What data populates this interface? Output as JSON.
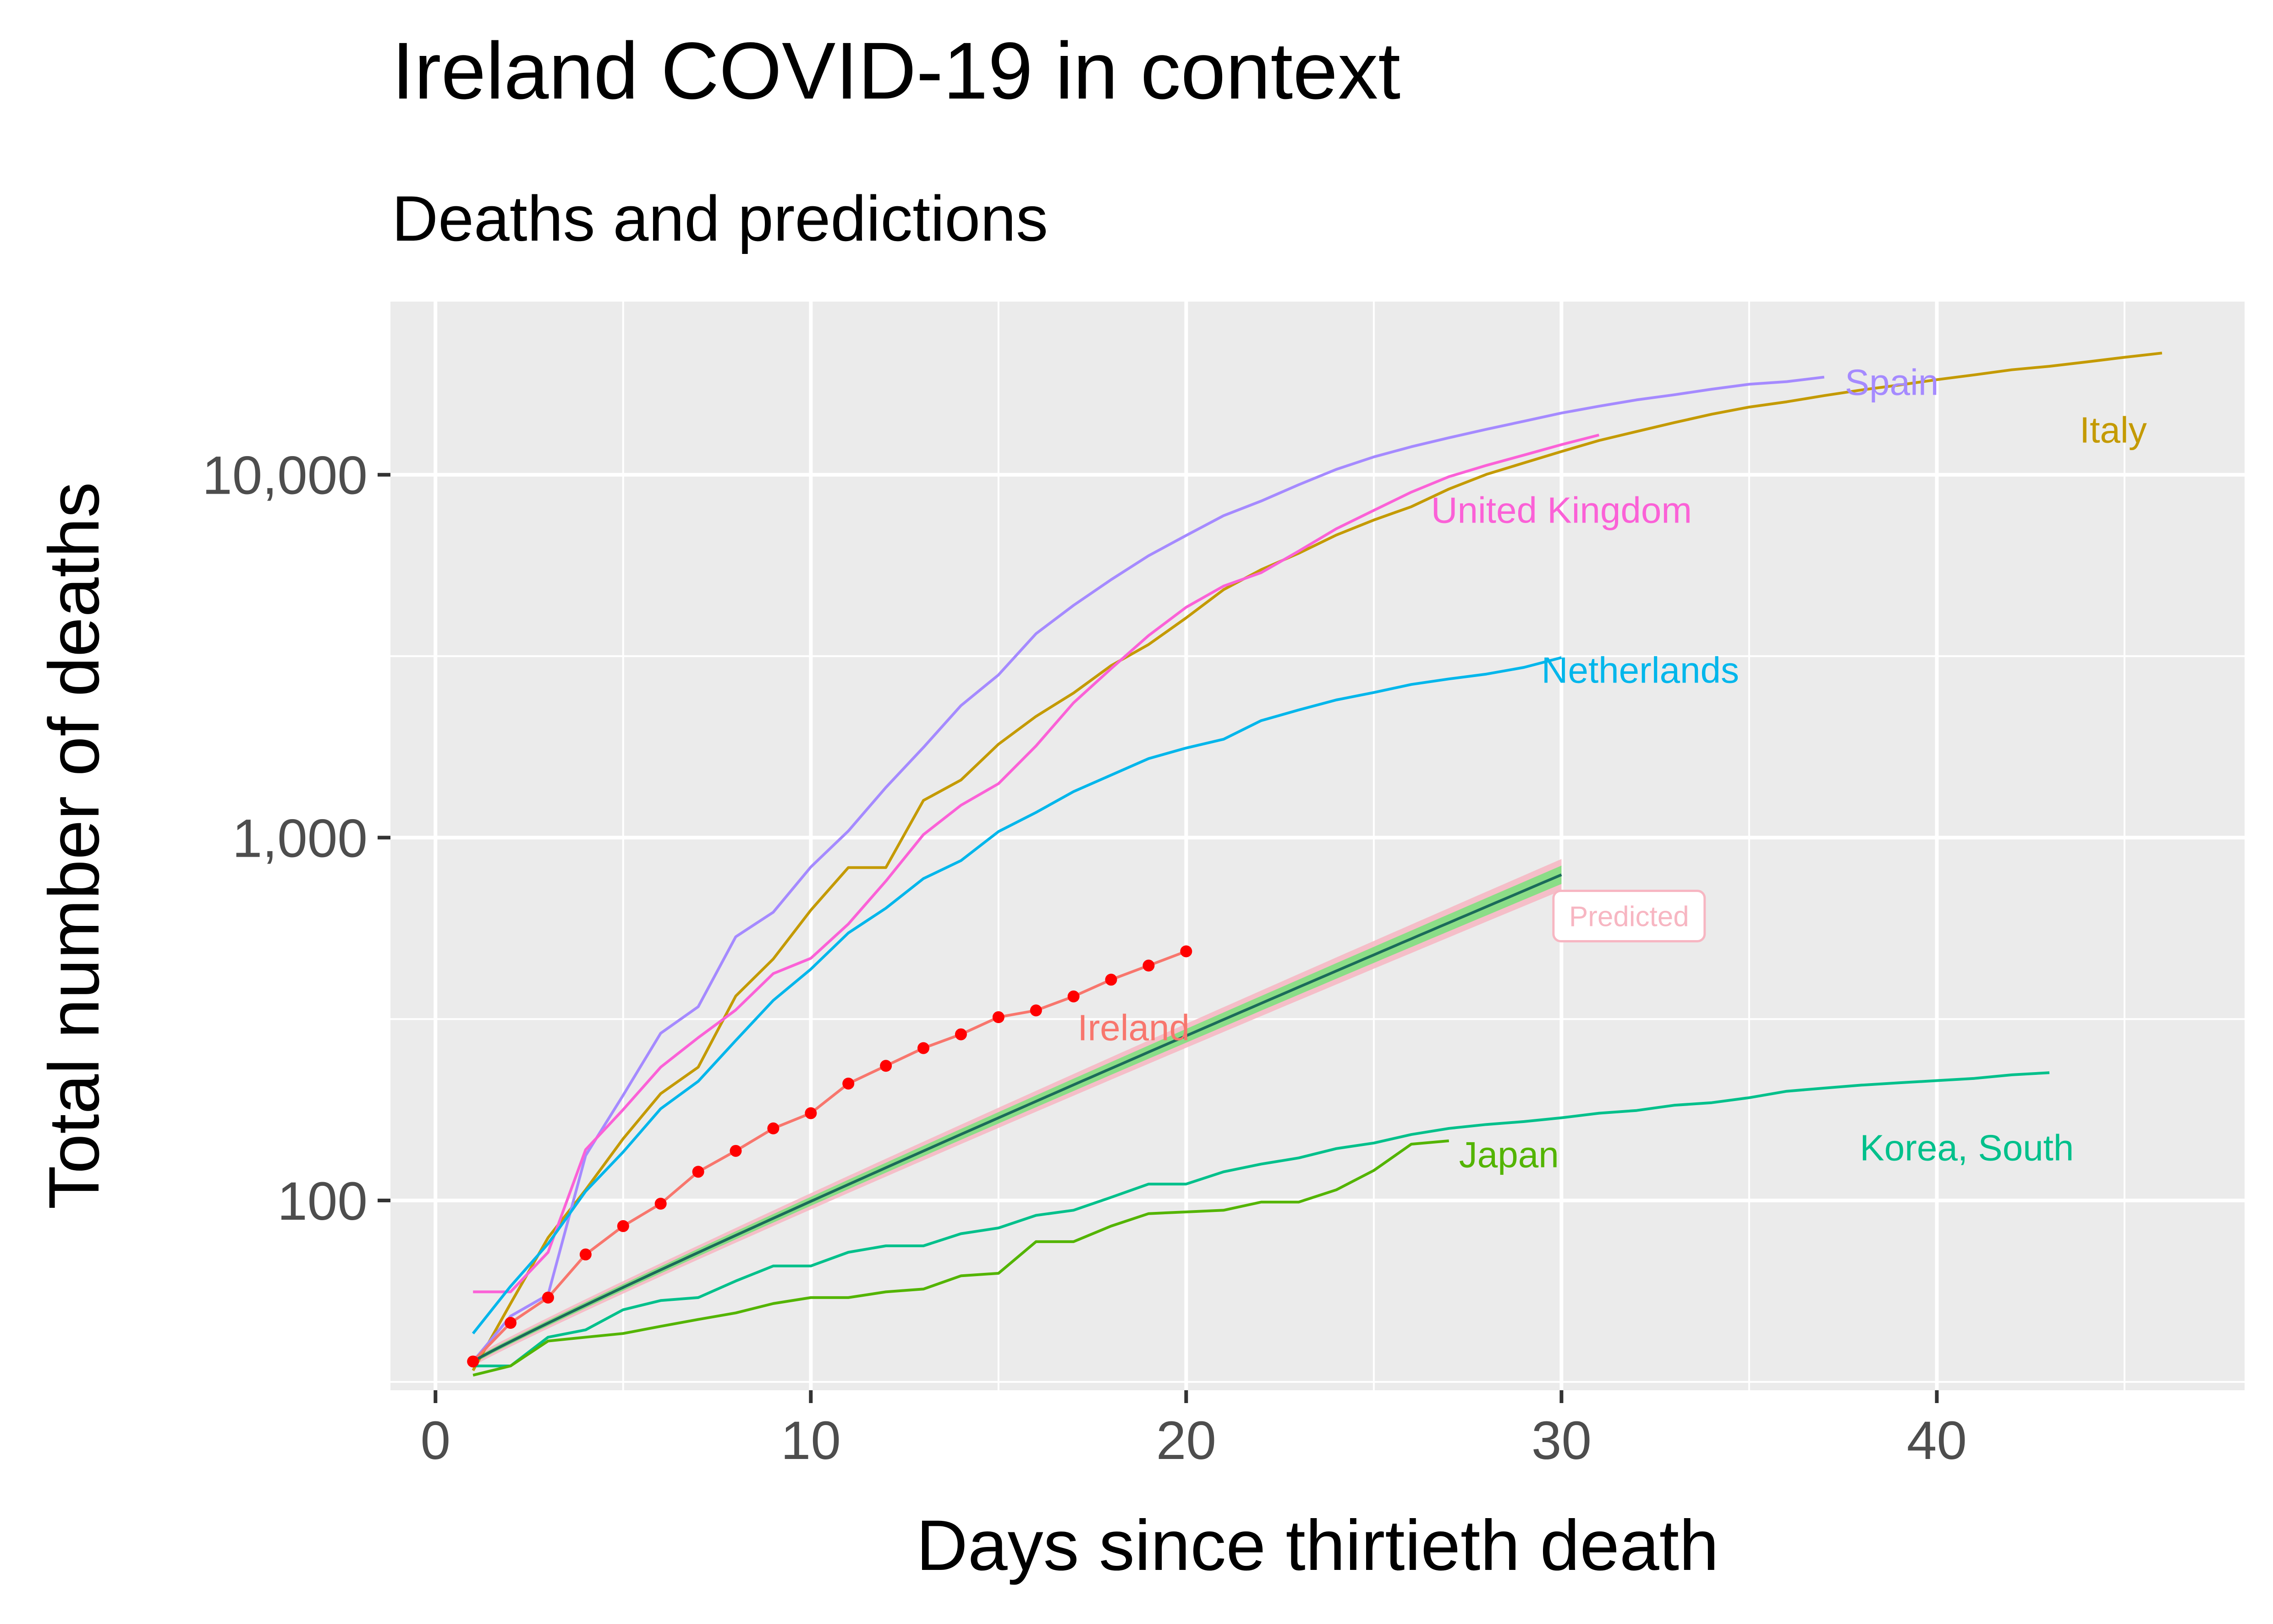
{
  "chart_data": {
    "type": "line",
    "title": "Ireland COVID-19 in context",
    "subtitle": "Deaths and predictions",
    "xlabel": "Days since thirtieth death",
    "ylabel": "Total number of deaths",
    "xlim": [
      -1.2,
      48.2
    ],
    "ylim": [
      30,
      30000
    ],
    "y_scale": "log10",
    "x_ticks": [
      0,
      10,
      20,
      30,
      40
    ],
    "x_tick_labels": [
      "0",
      "10",
      "20",
      "30",
      "40"
    ],
    "y_ticks": [
      100,
      1000,
      10000
    ],
    "y_tick_labels": [
      "100",
      "1,000",
      "10,000"
    ],
    "grid": true,
    "legend": "none",
    "colors": {
      "panel": "#ebebeb",
      "grid": "#ffffff",
      "Italy": "#c49a00",
      "Korea, South": "#00c08b",
      "Japan": "#53b400",
      "Netherlands": "#00b6eb",
      "Spain": "#a58aff",
      "United Kingdom": "#fb61d7",
      "Ireland": "#f8766d",
      "ireland_points": "#ff0000",
      "prediction_line": "#1b6b5a",
      "prediction_band_green": "#7fe07f",
      "prediction_band_pink": "#f7b6c2",
      "predicted_label": "#f7b6c2"
    },
    "series": [
      {
        "name": "Italy",
        "x": [
          1,
          2,
          3,
          4,
          5,
          6,
          7,
          8,
          9,
          10,
          11,
          12,
          13,
          14,
          15,
          16,
          17,
          18,
          19,
          20,
          21,
          22,
          23,
          24,
          25,
          26,
          27,
          28,
          29,
          30,
          31,
          32,
          33,
          34,
          35,
          36,
          37,
          38,
          39,
          40,
          41,
          42,
          43,
          44,
          45,
          46
        ],
        "y": [
          34,
          52,
          79,
          107,
          148,
          197,
          233,
          366,
          463,
          631,
          827,
          827,
          1266,
          1441,
          1809,
          2158,
          2503,
          2978,
          3405,
          4032,
          4825,
          5476,
          6077,
          6820,
          7503,
          8165,
          9134,
          10023,
          10779,
          11591,
          12428,
          13155,
          13915,
          14681,
          15362,
          15887,
          16523,
          17127,
          17669,
          18279,
          18849,
          19468,
          19899,
          20465,
          21067,
          21645
        ]
      },
      {
        "name": "Spain",
        "x": [
          1,
          2,
          3,
          4,
          5,
          6,
          7,
          8,
          9,
          10,
          11,
          12,
          13,
          14,
          15,
          16,
          17,
          18,
          19,
          20,
          21,
          22,
          23,
          24,
          25,
          26,
          27,
          28,
          29,
          30,
          31,
          32,
          33,
          34,
          35,
          36,
          37
        ],
        "y": [
          36,
          48,
          55,
          133,
          195,
          289,
          342,
          533,
          623,
          830,
          1043,
          1375,
          1772,
          2311,
          2808,
          3647,
          4365,
          5138,
          5982,
          6803,
          7716,
          8464,
          9387,
          10348,
          11198,
          11947,
          12641,
          13341,
          14045,
          14792,
          15447,
          16081,
          16606,
          17209,
          17756,
          18056,
          18579
        ]
      },
      {
        "name": "United Kingdom",
        "x": [
          1,
          2,
          3,
          4,
          5,
          6,
          7,
          8,
          9,
          10,
          11,
          12,
          13,
          14,
          15,
          16,
          17,
          18,
          19,
          20,
          21,
          22,
          23,
          24,
          25,
          26,
          27,
          28,
          29,
          30,
          31
        ],
        "y": [
          56,
          56,
          72,
          138,
          178,
          233,
          281,
          335,
          422,
          465,
          578,
          759,
          1019,
          1228,
          1408,
          1789,
          2352,
          2921,
          3605,
          4313,
          4934,
          5373,
          6159,
          7097,
          7978,
          8958,
          9875,
          10612,
          11329,
          12107,
          12868
        ]
      },
      {
        "name": "Netherlands",
        "x": [
          1,
          2,
          3,
          4,
          5,
          6,
          7,
          8,
          9,
          10,
          11,
          12,
          13,
          14,
          15,
          16,
          17,
          18,
          19,
          20,
          21,
          22,
          23,
          24,
          25,
          26,
          27,
          28,
          29,
          30
        ],
        "y": [
          43,
          58,
          76,
          106,
          136,
          179,
          213,
          276,
          356,
          434,
          546,
          639,
          771,
          864,
          1039,
          1173,
          1339,
          1487,
          1651,
          1766,
          1867,
          2101,
          2248,
          2396,
          2511,
          2643,
          2737,
          2823,
          2945,
          3134
        ]
      },
      {
        "name": "Korea, South",
        "x": [
          1,
          2,
          3,
          4,
          5,
          6,
          7,
          8,
          9,
          10,
          11,
          12,
          13,
          14,
          15,
          16,
          17,
          18,
          19,
          20,
          21,
          22,
          23,
          24,
          25,
          26,
          27,
          28,
          29,
          30,
          31,
          32,
          33,
          34,
          35,
          36,
          37,
          38,
          39,
          40,
          41,
          42,
          43
        ],
        "y": [
          35,
          35,
          42,
          44,
          50,
          53,
          54,
          60,
          66,
          66,
          72,
          75,
          75,
          81,
          84,
          91,
          94,
          102,
          111,
          111,
          120,
          126,
          131,
          139,
          144,
          152,
          158,
          162,
          165,
          169,
          174,
          177,
          183,
          186,
          192,
          200,
          204,
          208,
          211,
          214,
          217,
          222,
          225
        ]
      },
      {
        "name": "Japan",
        "x": [
          1,
          2,
          3,
          4,
          5,
          6,
          7,
          8,
          9,
          10,
          11,
          12,
          13,
          14,
          15,
          16,
          17,
          18,
          19,
          20,
          21,
          22,
          23,
          24,
          25,
          26,
          27
        ],
        "y": [
          33,
          35,
          41,
          42,
          43,
          45,
          47,
          49,
          52,
          54,
          54,
          56,
          57,
          62,
          63,
          77,
          77,
          85,
          92,
          93,
          94,
          99,
          99,
          107,
          121,
          143,
          146
        ]
      },
      {
        "name": "Ireland",
        "x": [
          1,
          2,
          3,
          4,
          5,
          6,
          7,
          8,
          9,
          10,
          11,
          12,
          13,
          14,
          15,
          16,
          17,
          18,
          19,
          20
        ],
        "y": [
          36,
          46,
          54,
          71,
          85,
          98,
          120,
          137,
          158,
          174,
          210,
          235,
          263,
          287,
          320,
          334,
          365,
          406,
          444,
          486
        ]
      }
    ],
    "ireland_points": {
      "name": "Ireland",
      "x": [
        1,
        2,
        3,
        4,
        5,
        6,
        7,
        8,
        9,
        10,
        11,
        12,
        13,
        14,
        15,
        16,
        17,
        18,
        19,
        20
      ],
      "y": [
        36,
        46,
        54,
        71,
        85,
        98,
        120,
        137,
        158,
        174,
        210,
        235,
        263,
        287,
        320,
        334,
        365,
        406,
        444,
        486
      ]
    },
    "prediction": {
      "x_start": 1,
      "x_end": 30,
      "y_start": 36,
      "y_end": 790,
      "exponent": 0.95
    },
    "labels": [
      {
        "text": "Spain",
        "x": 38.8,
        "y": 18000,
        "color": "#a58aff"
      },
      {
        "text": "Italy",
        "x": 44.7,
        "y": 13300,
        "color": "#c49a00"
      },
      {
        "text": "United Kingdom",
        "x": 30.0,
        "y": 8000,
        "color": "#fb61d7"
      },
      {
        "text": "Netherlands",
        "x": 32.1,
        "y": 2900,
        "color": "#00b6eb"
      },
      {
        "text": "Ireland",
        "x": 18.6,
        "y": 300,
        "color": "#f8766d"
      },
      {
        "text": "Japan",
        "x": 28.6,
        "y": 134,
        "color": "#53b400"
      },
      {
        "text": "Korea, South",
        "x": 40.8,
        "y": 140,
        "color": "#00c08b"
      },
      {
        "text": "Predicted",
        "x": 31.8,
        "y": 608,
        "color": "#f7b6c2"
      }
    ]
  }
}
